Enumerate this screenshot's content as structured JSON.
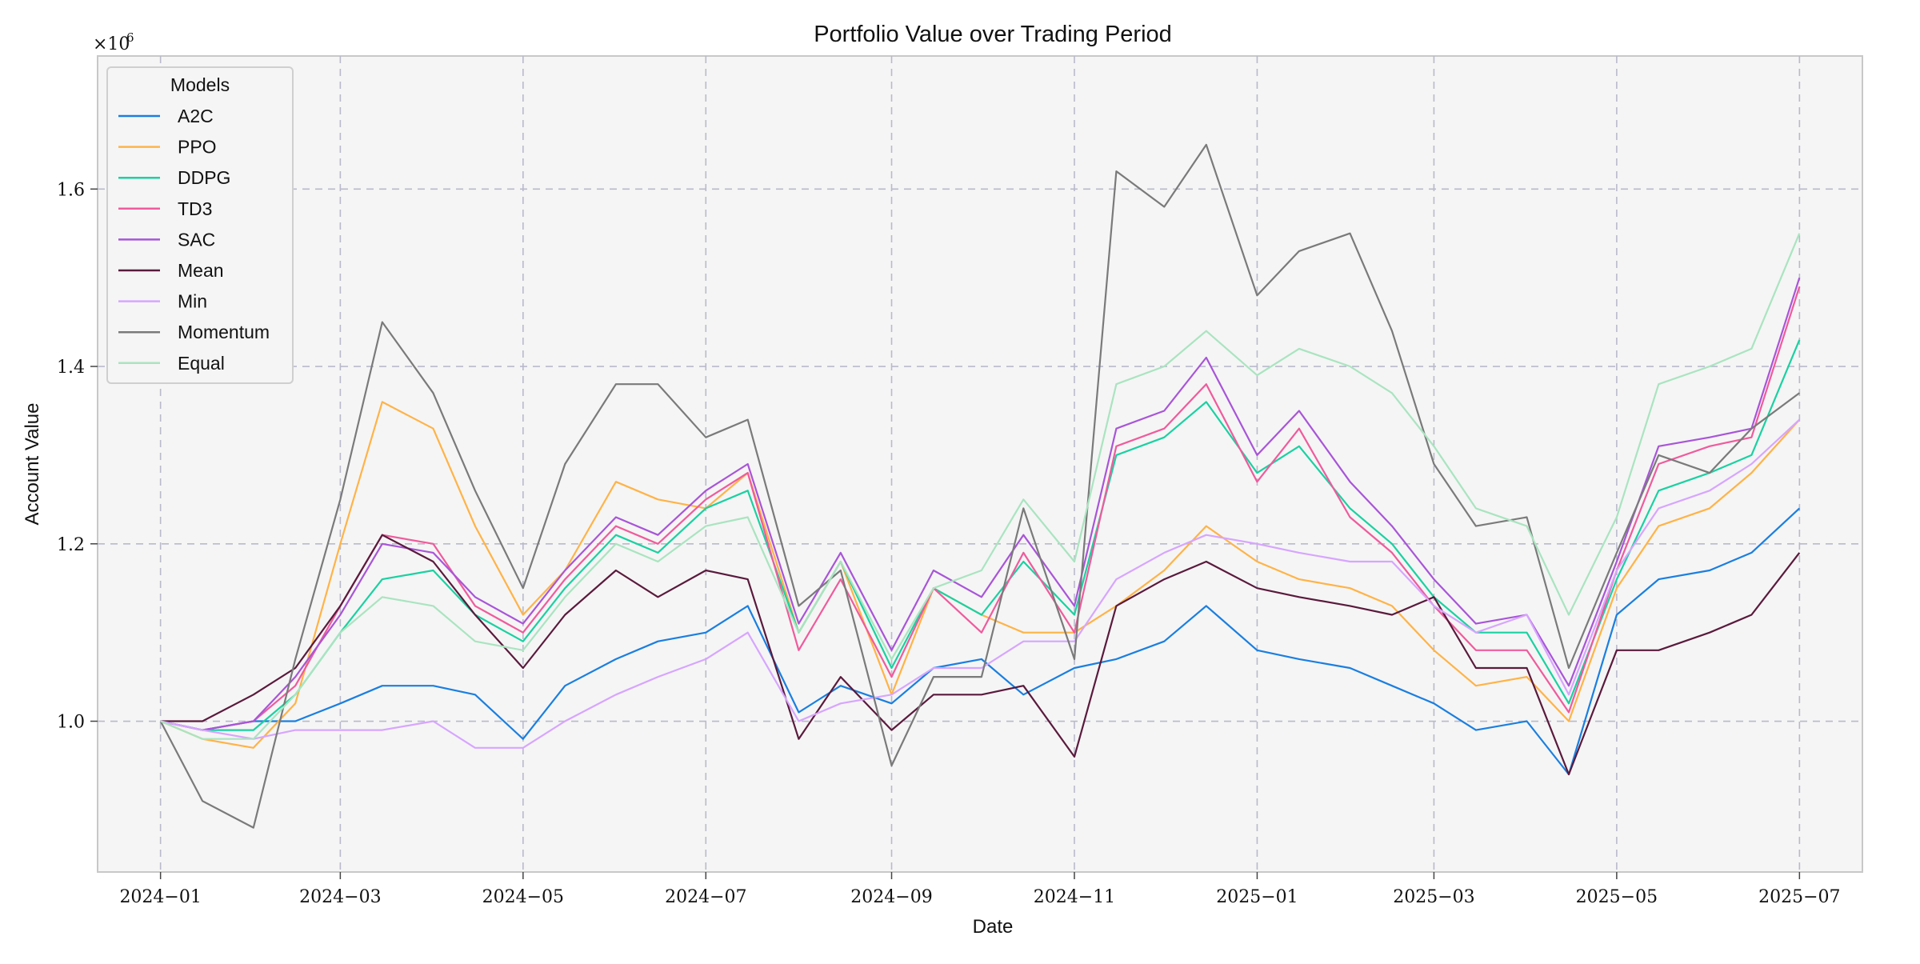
{
  "chart_data": {
    "type": "line",
    "title": "Portfolio Value over Trading Period",
    "xlabel": "Date",
    "ylabel": "Account Value",
    "y_multiplier": "×10",
    "y_multiplier_exp": "6",
    "legend_title": "Models",
    "legend_position": "top-left",
    "grid": true,
    "x_ticks": [
      "2024−01",
      "2024−03",
      "2024−05",
      "2024−07",
      "2024−09",
      "2024−11",
      "2025−01",
      "2025−03",
      "2025−05",
      "2025−07"
    ],
    "y_ticks": [
      "1.0",
      "1.2",
      "1.4",
      "1.6"
    ],
    "ylim": [
      0.83,
      1.75
    ],
    "x_range": [
      "2023-12-11",
      "2025-07-22"
    ],
    "x_dates": [
      "2024-01-01",
      "2024-01-15",
      "2024-02-01",
      "2024-02-15",
      "2024-03-01",
      "2024-03-15",
      "2024-04-01",
      "2024-04-15",
      "2024-05-01",
      "2024-05-15",
      "2024-06-01",
      "2024-06-15",
      "2024-07-01",
      "2024-07-15",
      "2024-08-01",
      "2024-08-15",
      "2024-09-01",
      "2024-09-15",
      "2024-10-01",
      "2024-10-15",
      "2024-11-01",
      "2024-11-15",
      "2024-12-01",
      "2024-12-15",
      "2025-01-01",
      "2025-01-15",
      "2025-02-01",
      "2025-02-15",
      "2025-03-01",
      "2025-03-15",
      "2025-04-01",
      "2025-04-15",
      "2025-05-01",
      "2025-05-15",
      "2025-06-01",
      "2025-06-15",
      "2025-07-01"
    ],
    "series": [
      {
        "name": "A2C",
        "color": "#1a7fe0",
        "values": [
          1.0,
          0.99,
          1.0,
          1.0,
          1.02,
          1.04,
          1.04,
          1.03,
          0.98,
          1.04,
          1.07,
          1.09,
          1.1,
          1.13,
          1.01,
          1.04,
          1.02,
          1.06,
          1.07,
          1.03,
          1.06,
          1.07,
          1.09,
          1.13,
          1.08,
          1.07,
          1.06,
          1.04,
          1.02,
          0.99,
          1.0,
          0.94,
          1.12,
          1.16,
          1.17,
          1.19,
          1.24
        ]
      },
      {
        "name": "PPO",
        "color": "#ffb347",
        "values": [
          1.0,
          0.98,
          0.97,
          1.02,
          1.2,
          1.36,
          1.33,
          1.22,
          1.12,
          1.17,
          1.27,
          1.25,
          1.24,
          1.28,
          1.1,
          1.18,
          1.03,
          1.15,
          1.12,
          1.1,
          1.1,
          1.13,
          1.17,
          1.22,
          1.18,
          1.16,
          1.15,
          1.13,
          1.08,
          1.04,
          1.05,
          1.0,
          1.15,
          1.22,
          1.24,
          1.28,
          1.34
        ]
      },
      {
        "name": "DDPG",
        "color": "#1ad1a1",
        "values": [
          1.0,
          0.99,
          0.99,
          1.03,
          1.1,
          1.16,
          1.17,
          1.12,
          1.09,
          1.15,
          1.21,
          1.19,
          1.24,
          1.26,
          1.1,
          1.18,
          1.06,
          1.15,
          1.12,
          1.18,
          1.12,
          1.3,
          1.32,
          1.36,
          1.28,
          1.31,
          1.24,
          1.2,
          1.14,
          1.1,
          1.1,
          1.02,
          1.16,
          1.26,
          1.28,
          1.3,
          1.43
        ]
      },
      {
        "name": "TD3",
        "color": "#ef5b9c",
        "values": [
          1.0,
          0.99,
          1.0,
          1.04,
          1.13,
          1.21,
          1.2,
          1.13,
          1.1,
          1.16,
          1.22,
          1.2,
          1.25,
          1.28,
          1.08,
          1.16,
          1.05,
          1.15,
          1.1,
          1.19,
          1.1,
          1.31,
          1.33,
          1.38,
          1.27,
          1.33,
          1.23,
          1.19,
          1.13,
          1.08,
          1.08,
          1.01,
          1.17,
          1.29,
          1.31,
          1.32,
          1.49
        ]
      },
      {
        "name": "SAC",
        "color": "#a855d8",
        "values": [
          1.0,
          0.99,
          1.0,
          1.05,
          1.12,
          1.2,
          1.19,
          1.14,
          1.11,
          1.17,
          1.23,
          1.21,
          1.26,
          1.29,
          1.11,
          1.19,
          1.08,
          1.17,
          1.14,
          1.21,
          1.13,
          1.33,
          1.35,
          1.41,
          1.3,
          1.35,
          1.27,
          1.22,
          1.16,
          1.11,
          1.12,
          1.04,
          1.18,
          1.31,
          1.32,
          1.33,
          1.5
        ]
      },
      {
        "name": "Mean",
        "color": "#5a1a3c",
        "values": [
          1.0,
          1.0,
          1.03,
          1.06,
          1.13,
          1.21,
          1.18,
          1.12,
          1.06,
          1.12,
          1.17,
          1.14,
          1.17,
          1.16,
          0.98,
          1.05,
          0.99,
          1.03,
          1.03,
          1.04,
          0.96,
          1.13,
          1.16,
          1.18,
          1.15,
          1.14,
          1.13,
          1.12,
          1.14,
          1.06,
          1.06,
          0.94,
          1.08,
          1.08,
          1.1,
          1.12,
          1.19
        ]
      },
      {
        "name": "Min",
        "color": "#d7a5ff",
        "values": [
          1.0,
          0.99,
          0.98,
          0.99,
          0.99,
          0.99,
          1.0,
          0.97,
          0.97,
          1.0,
          1.03,
          1.05,
          1.07,
          1.1,
          1.0,
          1.02,
          1.03,
          1.06,
          1.06,
          1.09,
          1.09,
          1.16,
          1.19,
          1.21,
          1.2,
          1.19,
          1.18,
          1.18,
          1.13,
          1.1,
          1.12,
          1.03,
          1.17,
          1.24,
          1.26,
          1.29,
          1.34
        ]
      },
      {
        "name": "Momentum",
        "color": "#7a7a7a",
        "values": [
          1.0,
          0.91,
          0.88,
          1.07,
          1.25,
          1.45,
          1.37,
          1.26,
          1.15,
          1.29,
          1.38,
          1.38,
          1.32,
          1.34,
          1.13,
          1.17,
          0.95,
          1.05,
          1.05,
          1.24,
          1.07,
          1.62,
          1.58,
          1.65,
          1.48,
          1.53,
          1.55,
          1.44,
          1.29,
          1.22,
          1.23,
          1.06,
          1.19,
          1.3,
          1.28,
          1.33,
          1.37
        ]
      },
      {
        "name": "Equal",
        "color": "#a9e4c0",
        "values": [
          1.0,
          0.98,
          0.98,
          1.03,
          1.1,
          1.14,
          1.13,
          1.09,
          1.08,
          1.14,
          1.2,
          1.18,
          1.22,
          1.23,
          1.1,
          1.18,
          1.07,
          1.15,
          1.17,
          1.25,
          1.18,
          1.38,
          1.4,
          1.44,
          1.39,
          1.42,
          1.4,
          1.37,
          1.31,
          1.24,
          1.22,
          1.12,
          1.23,
          1.38,
          1.4,
          1.42,
          1.55
        ]
      }
    ]
  }
}
